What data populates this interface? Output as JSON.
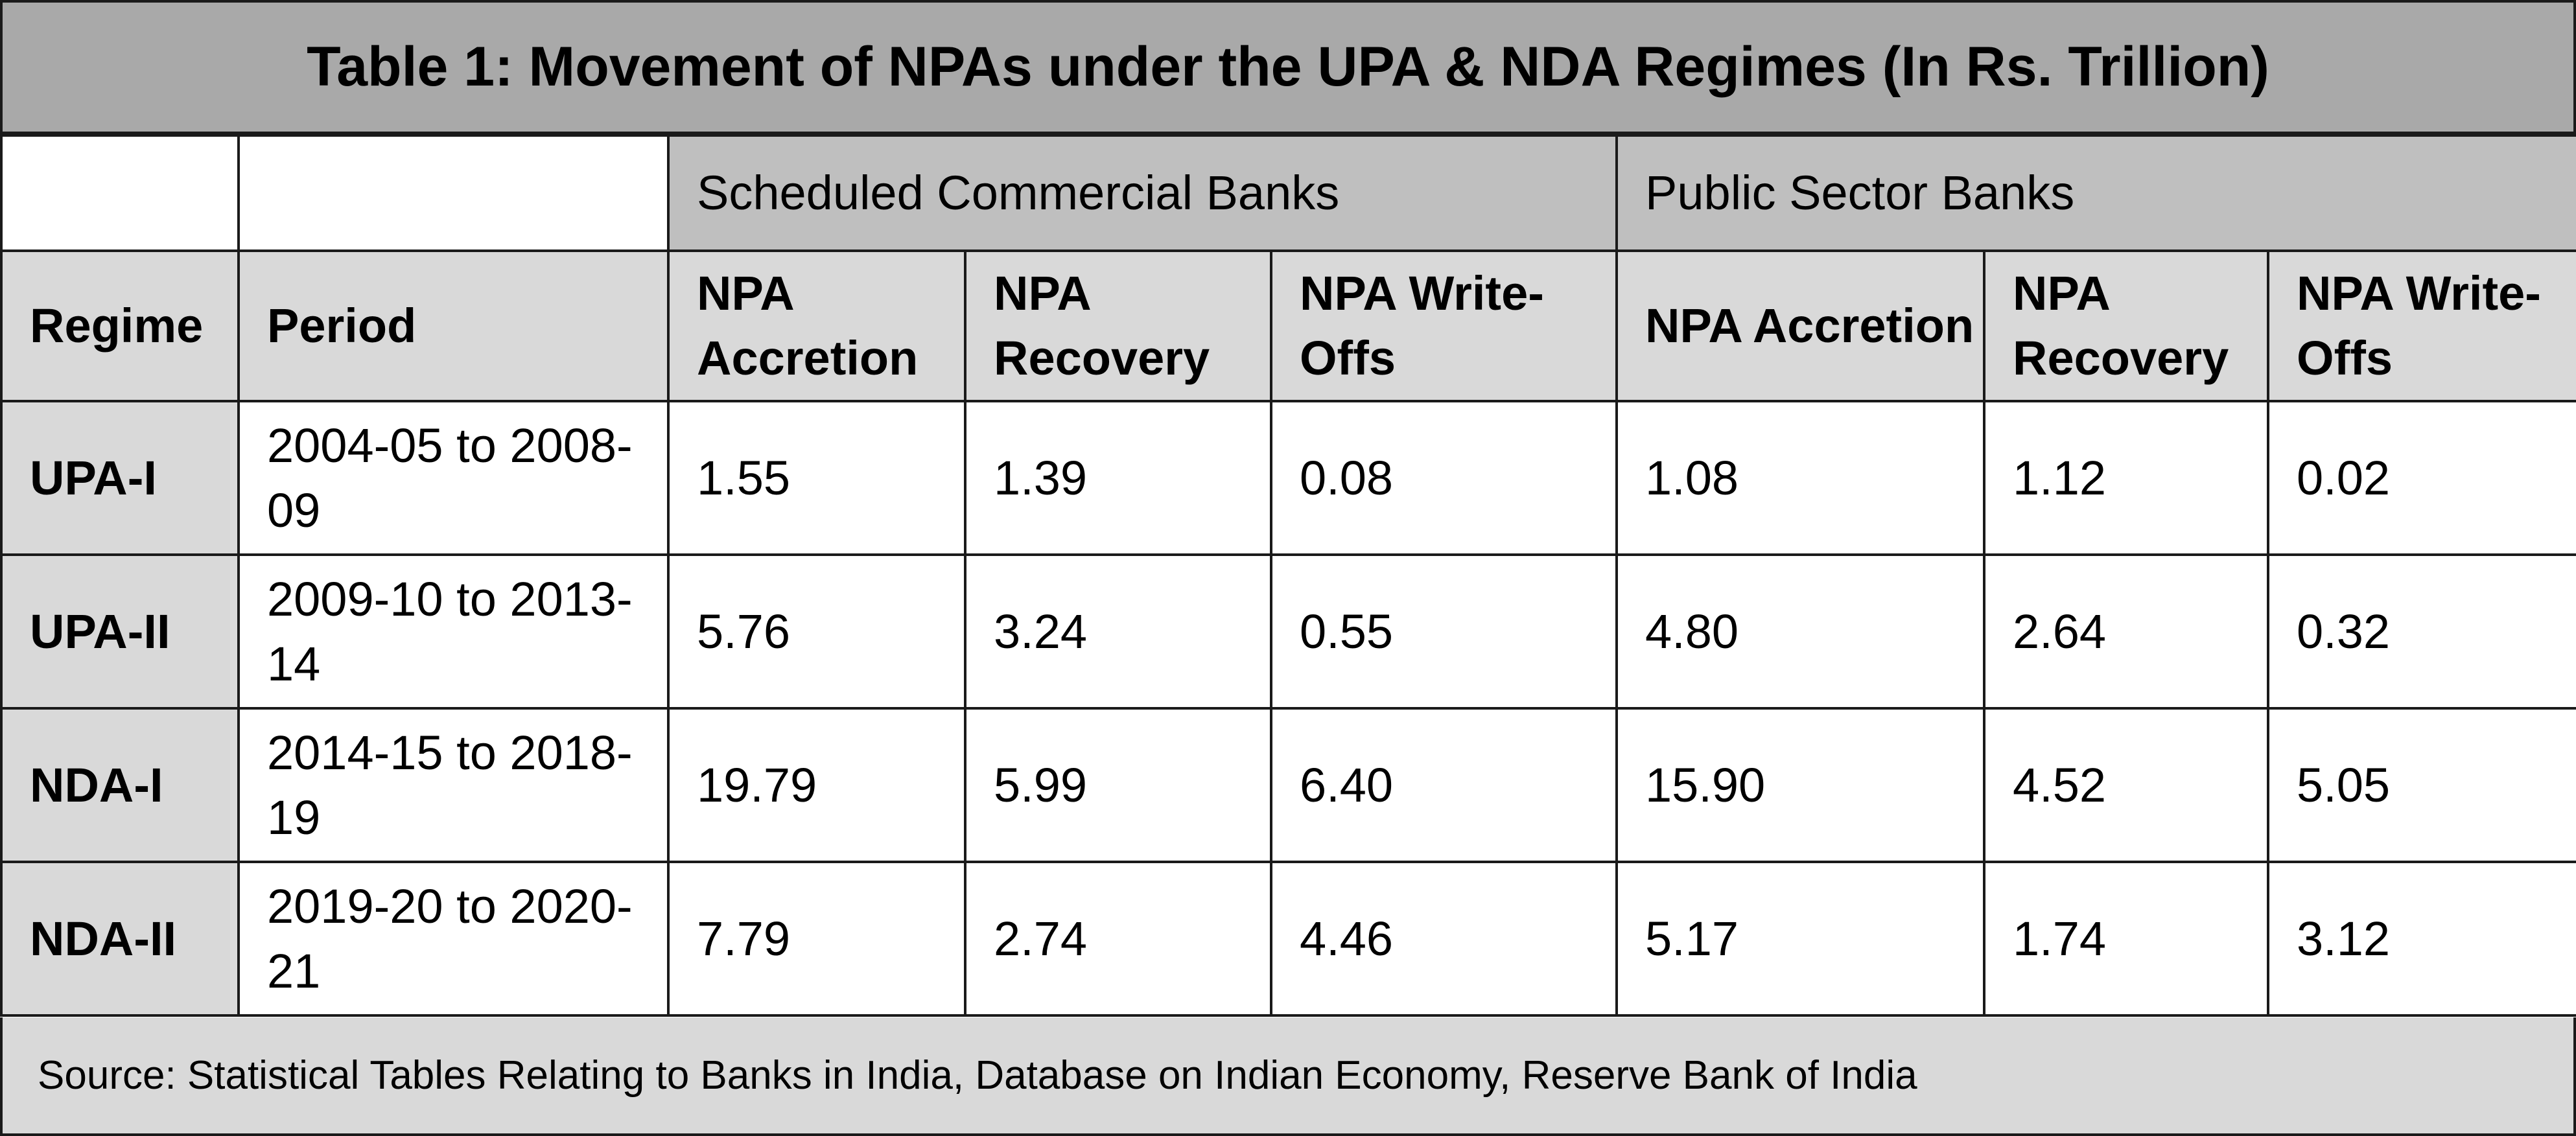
{
  "title": "Table 1: Movement of NPAs under the UPA & NDA Regimes (In Rs. Trillion)",
  "groups": {
    "scb": "Scheduled Commercial Banks",
    "psb": "Public Sector Banks"
  },
  "headers": {
    "regime": "Regime",
    "period": "Period",
    "scb_accretion": "NPA Accretion",
    "scb_recovery": "NPA Recovery",
    "scb_writeoffs": "NPA Write-Offs",
    "psb_accretion": "NPA Accretion",
    "psb_recovery": "NPA Recovery",
    "psb_writeoffs": "NPA Write-Offs"
  },
  "rows": [
    {
      "regime": "UPA-I",
      "period": "2004-05 to 2008-09",
      "scb_accretion": "1.55",
      "scb_recovery": "1.39",
      "scb_writeoffs": "0.08",
      "psb_accretion": "1.08",
      "psb_recovery": "1.12",
      "psb_writeoffs": "0.02"
    },
    {
      "regime": "UPA-II",
      "period": "2009-10 to 2013-14",
      "scb_accretion": "5.76",
      "scb_recovery": "3.24",
      "scb_writeoffs": "0.55",
      "psb_accretion": "4.80",
      "psb_recovery": "2.64",
      "psb_writeoffs": "0.32"
    },
    {
      "regime": "NDA-I",
      "period": "2014-15 to 2018-19",
      "scb_accretion": "19.79",
      "scb_recovery": "5.99",
      "scb_writeoffs": "6.40",
      "psb_accretion": "15.90",
      "psb_recovery": "4.52",
      "psb_writeoffs": "5.05"
    },
    {
      "regime": "NDA-II",
      "period": "2019-20 to 2020-21",
      "scb_accretion": "7.79",
      "scb_recovery": "2.74",
      "scb_writeoffs": "4.46",
      "psb_accretion": "5.17",
      "psb_recovery": "1.74",
      "psb_writeoffs": "3.12"
    }
  ],
  "source": "Source: Statistical Tables Relating to Banks in India, Database on Indian Economy, Reserve Bank of India"
}
